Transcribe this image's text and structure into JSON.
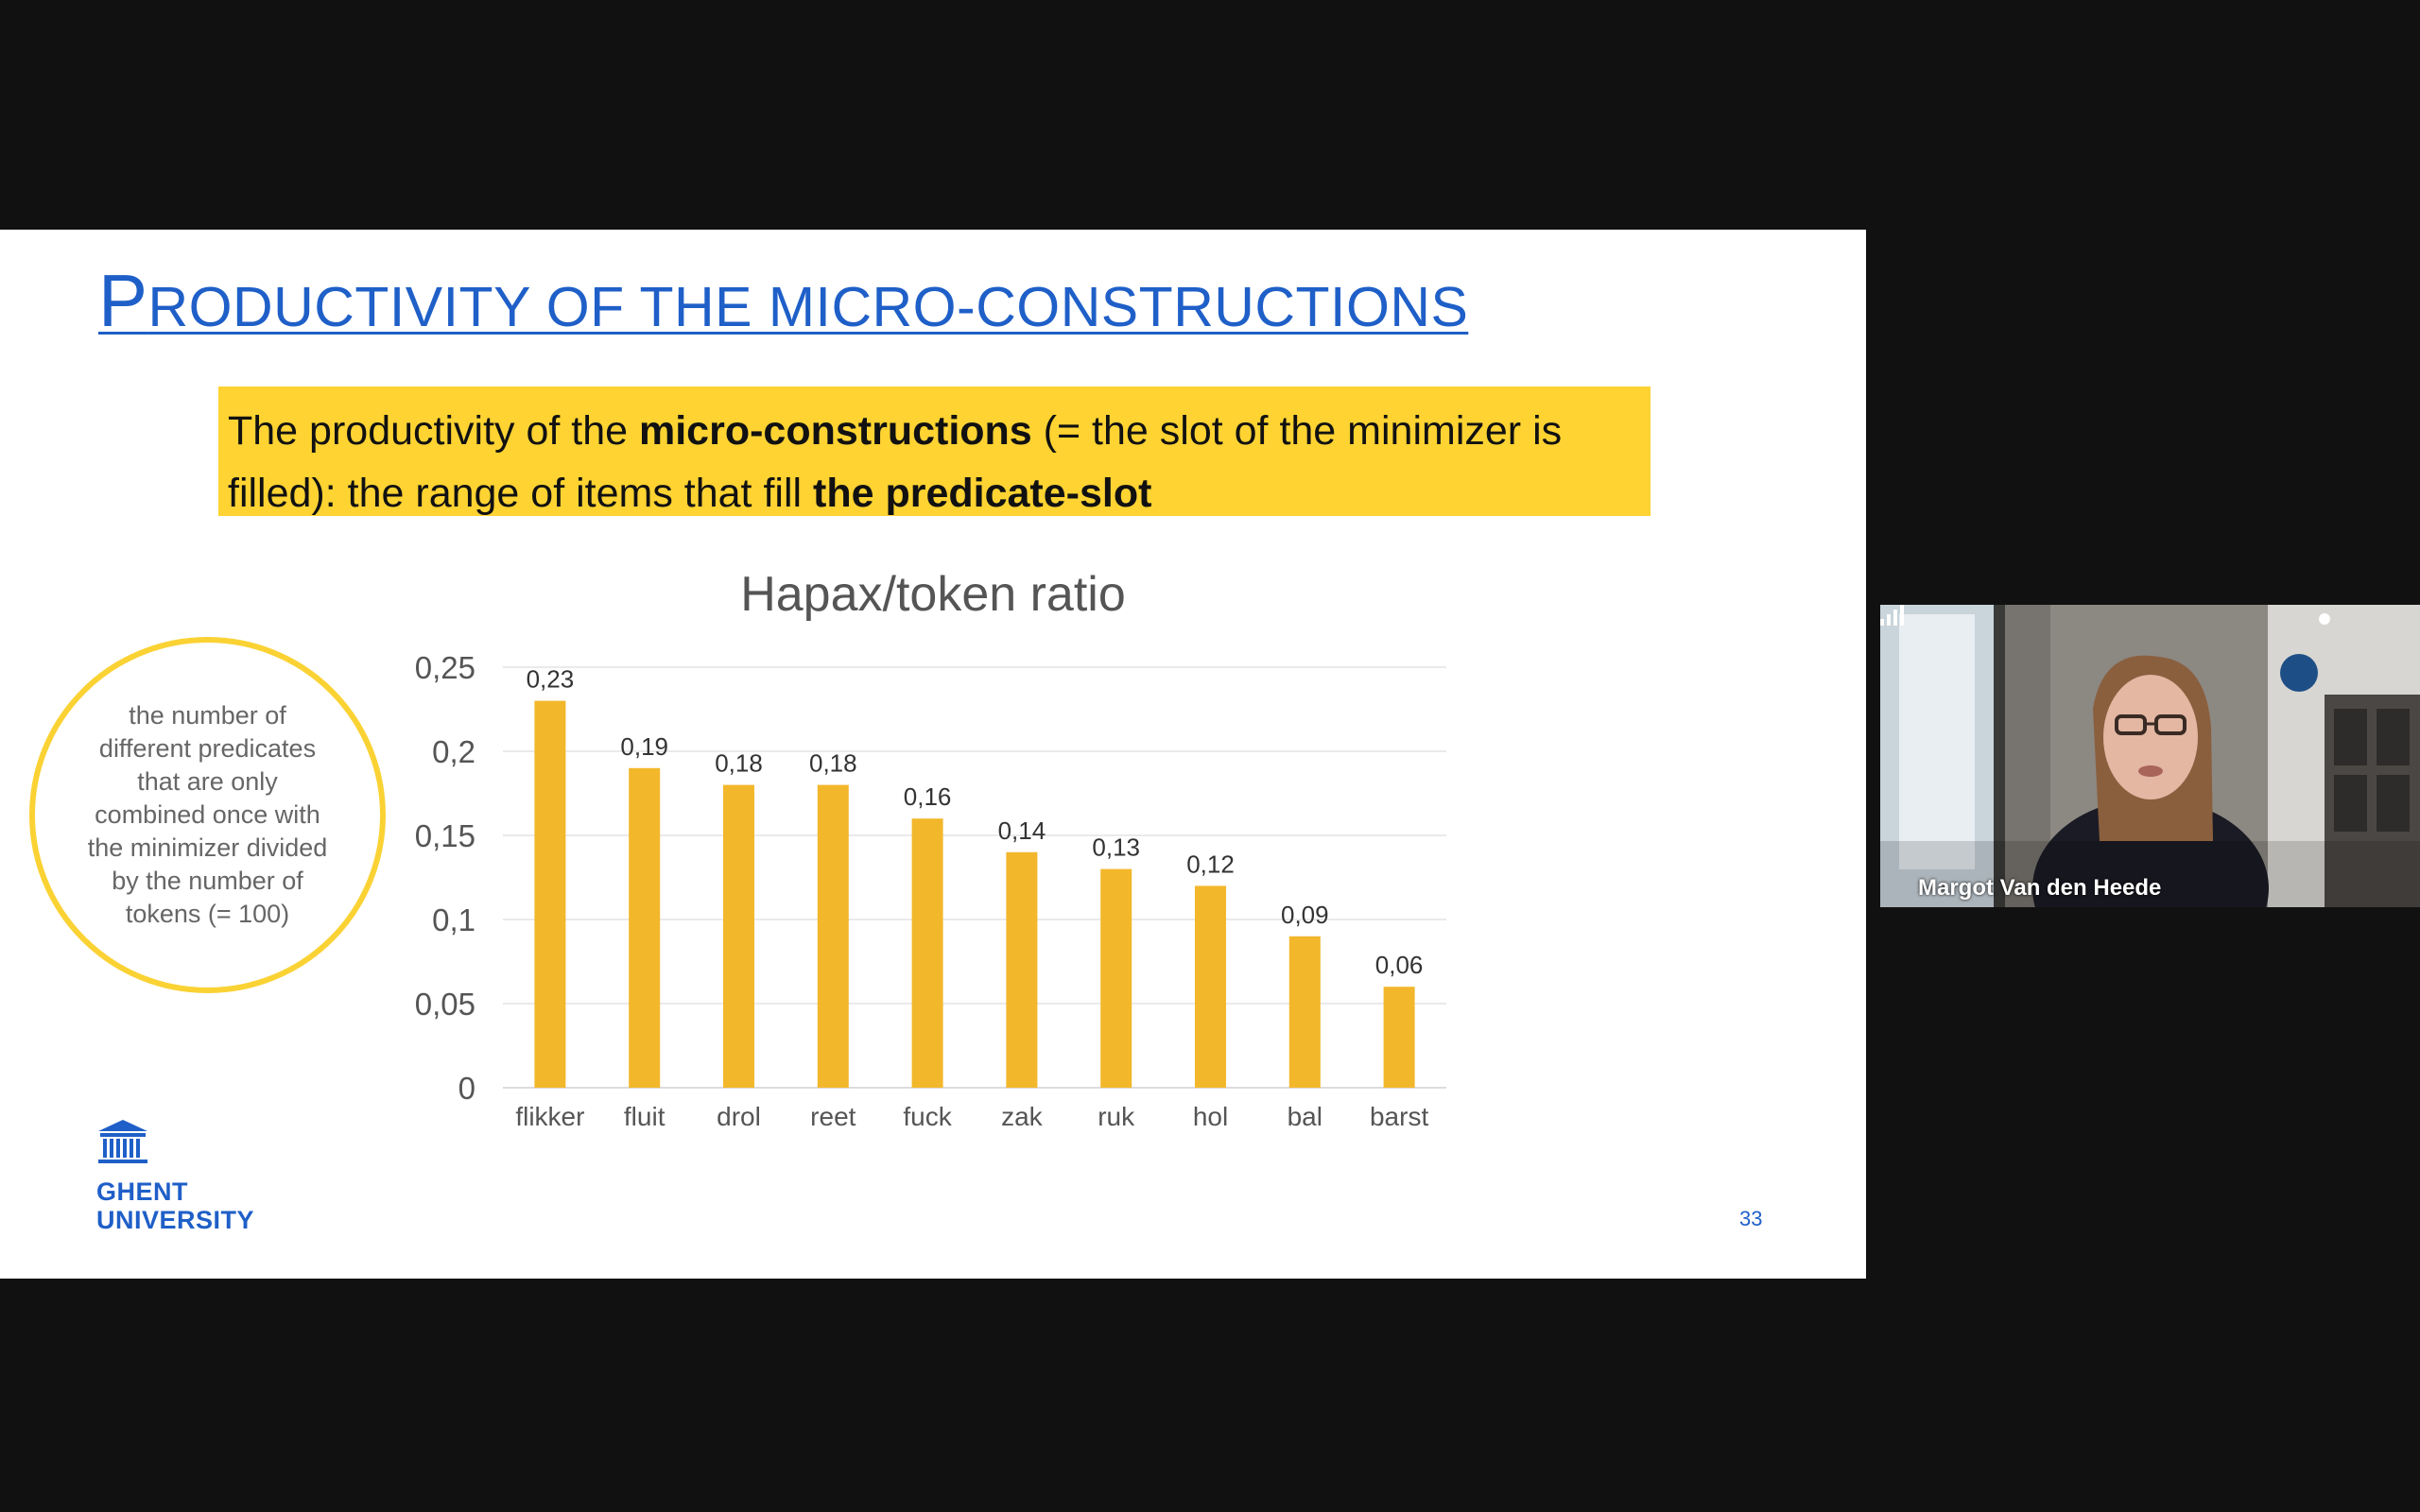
{
  "slide": {
    "title_cap": "P",
    "title_rest": "RODUCTIVITY OF THE MICRO-CONSTRUCTIONS",
    "definition": {
      "part1": "The productivity of the ",
      "bold1": "micro-constructions",
      "part2": " (= the slot of the minimizer is filled): the range of items that fill ",
      "bold2": "the predicate-slot"
    },
    "note": "the number of different predicates that are only combined once with the minimizer divided by the number of tokens (= 100)",
    "logo_line1": "GHENT",
    "logo_line2": "UNIVERSITY",
    "page_number": "33"
  },
  "chart_data": {
    "type": "bar",
    "title": "Hapax/token ratio",
    "categories": [
      "flikker",
      "fluit",
      "drol",
      "reet",
      "fuck",
      "zak",
      "ruk",
      "hol",
      "bal",
      "barst"
    ],
    "values": [
      0.23,
      0.19,
      0.18,
      0.18,
      0.16,
      0.14,
      0.13,
      0.12,
      0.09,
      0.06
    ],
    "data_labels": [
      "0,23",
      "0,19",
      "0,18",
      "0,18",
      "0,16",
      "0,14",
      "0,13",
      "0,12",
      "0,09",
      "0,06"
    ],
    "yticks": [
      0,
      0.05,
      0.1,
      0.15,
      0.2,
      0.25
    ],
    "ytick_labels": [
      "0",
      "0,05",
      "0,1",
      "0,15",
      "0,2",
      "0,25"
    ],
    "ylim": [
      0,
      0.25
    ],
    "grid": true,
    "bar_color": "#f2b72b",
    "xlabel": "",
    "ylabel": ""
  },
  "video": {
    "participant_name": "Margot Van den Heede"
  },
  "colors": {
    "accent": "#1f5fc8",
    "highlight": "#fed332",
    "bar": "#f2b72b"
  }
}
